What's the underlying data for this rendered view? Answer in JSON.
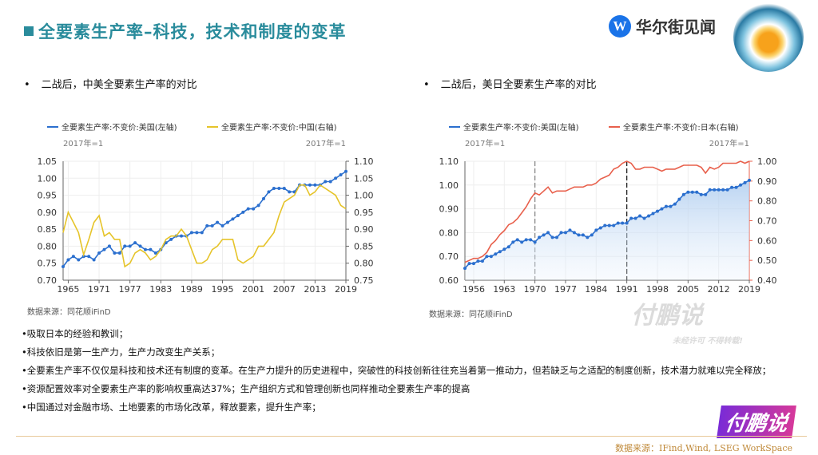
{
  "header": {
    "title": "全要素生产率–科技，技术和制度的变革",
    "brand": "华尔街见闻",
    "brand_logo_letter": "W",
    "brand_color": "#1a73e8",
    "title_color": "#2a8c9c"
  },
  "bullets": [
    "二战后，中美全要素生产率的对比",
    "二战后，美日全要素生产率的对比"
  ],
  "chart_data": [
    {
      "type": "line",
      "legend": [
        "全要素生产率:不变价:美国(左轴)",
        "全要素生产率:不变价:中国(右轴)"
      ],
      "legend_placement": "top",
      "left_unit": "2017年=1",
      "right_unit": "2017年=1",
      "ylim_left": [
        0.7,
        1.05
      ],
      "yticks_left": [
        "0.70",
        "0.75",
        "0.80",
        "0.85",
        "0.90",
        "0.95",
        "1.00",
        "1.05"
      ],
      "ylim_right": [
        0.75,
        1.1
      ],
      "yticks_right": [
        "0.75",
        "0.80",
        "0.85",
        "0.90",
        "0.95",
        "1.00",
        "1.05",
        "1.10"
      ],
      "xlim": [
        1964,
        2019
      ],
      "xticks": [
        "1965",
        "1971",
        "1977",
        "1983",
        "1989",
        "1995",
        "2001",
        "2007",
        "2013",
        "2019"
      ],
      "grid": true,
      "source": "数据来源：同花顺iFinD",
      "series": [
        {
          "name": "全要素生产率:不变价:美国(左轴)",
          "axis": "left",
          "color": "#2b6fce",
          "markers": true,
          "x_start": 1964,
          "values": [
            0.74,
            0.76,
            0.77,
            0.76,
            0.77,
            0.77,
            0.76,
            0.78,
            0.79,
            0.8,
            0.78,
            0.78,
            0.8,
            0.8,
            0.81,
            0.8,
            0.79,
            0.79,
            0.78,
            0.79,
            0.81,
            0.82,
            0.83,
            0.83,
            0.83,
            0.84,
            0.84,
            0.84,
            0.86,
            0.86,
            0.87,
            0.86,
            0.87,
            0.88,
            0.89,
            0.9,
            0.91,
            0.91,
            0.92,
            0.94,
            0.96,
            0.97,
            0.97,
            0.97,
            0.96,
            0.96,
            0.98,
            0.98,
            0.98,
            0.98,
            0.98,
            0.99,
            0.99,
            1.0,
            1.01,
            1.02
          ]
        },
        {
          "name": "全要素生产率:不变价:中国(右轴)",
          "axis": "right",
          "color": "#e6c42a",
          "markers": false,
          "x_start": 1964,
          "values": [
            0.89,
            0.95,
            0.92,
            0.89,
            0.825,
            0.87,
            0.92,
            0.94,
            0.88,
            0.89,
            0.87,
            0.87,
            0.79,
            0.8,
            0.83,
            0.84,
            0.83,
            0.81,
            0.82,
            0.84,
            0.87,
            0.88,
            0.88,
            0.9,
            0.88,
            0.84,
            0.8,
            0.8,
            0.81,
            0.84,
            0.85,
            0.87,
            0.87,
            0.87,
            0.81,
            0.8,
            0.81,
            0.82,
            0.85,
            0.85,
            0.87,
            0.89,
            0.94,
            0.98,
            0.99,
            1.0,
            1.03,
            1.03,
            1.0,
            1.01,
            1.03,
            1.02,
            1.01,
            1.0,
            0.97,
            0.96
          ]
        }
      ]
    },
    {
      "type": "line",
      "legend": [
        "全要素生产率:不变价:美国(左轴)",
        "全要素生产率:不变价:日本(右轴)"
      ],
      "legend_placement": "top",
      "left_unit": "2017年=1",
      "right_unit": "2017年=1",
      "ylim_left": [
        0.6,
        1.1
      ],
      "yticks_left": [
        "0.60",
        "0.70",
        "0.80",
        "0.90",
        "1.00",
        "1.10"
      ],
      "ylim_right": [
        0.4,
        1.0
      ],
      "yticks_right": [
        "0.40",
        "0.50",
        "0.60",
        "0.70",
        "0.80",
        "0.90",
        "1.00"
      ],
      "xlim": [
        1954,
        2019
      ],
      "xticks": [
        "1956",
        "1963",
        "1970",
        "1977",
        "1984",
        "1991",
        "1998",
        "2005",
        "2012",
        "2019"
      ],
      "grid": true,
      "vlines": [
        1970,
        1991
      ],
      "source": "数据来源：同花顺iFinD",
      "series": [
        {
          "name": "全要素生产率:不变价:美国(左轴)",
          "axis": "left",
          "color": "#2b6fce",
          "markers": true,
          "area": true,
          "x_start": 1954,
          "values": [
            0.65,
            0.67,
            0.67,
            0.68,
            0.68,
            0.7,
            0.7,
            0.71,
            0.72,
            0.73,
            0.74,
            0.76,
            0.77,
            0.76,
            0.77,
            0.77,
            0.76,
            0.78,
            0.79,
            0.8,
            0.78,
            0.78,
            0.8,
            0.8,
            0.81,
            0.8,
            0.79,
            0.79,
            0.78,
            0.79,
            0.81,
            0.82,
            0.83,
            0.83,
            0.83,
            0.84,
            0.84,
            0.84,
            0.86,
            0.86,
            0.87,
            0.86,
            0.87,
            0.88,
            0.89,
            0.9,
            0.91,
            0.91,
            0.92,
            0.94,
            0.96,
            0.97,
            0.97,
            0.97,
            0.96,
            0.96,
            0.98,
            0.98,
            0.98,
            0.98,
            0.98,
            0.99,
            0.99,
            1.0,
            1.01,
            1.02
          ]
        },
        {
          "name": "全要素生产率:不变价:日本(右轴)",
          "axis": "right",
          "color": "#e8604c",
          "markers": false,
          "x_start": 1954,
          "values": [
            0.49,
            0.5,
            0.51,
            0.51,
            0.52,
            0.54,
            0.58,
            0.6,
            0.63,
            0.65,
            0.68,
            0.69,
            0.71,
            0.74,
            0.77,
            0.81,
            0.84,
            0.83,
            0.85,
            0.87,
            0.84,
            0.85,
            0.85,
            0.85,
            0.86,
            0.87,
            0.87,
            0.87,
            0.88,
            0.88,
            0.89,
            0.91,
            0.92,
            0.93,
            0.96,
            0.97,
            0.99,
            1.0,
            0.99,
            0.96,
            0.96,
            0.97,
            0.97,
            0.97,
            0.96,
            0.95,
            0.96,
            0.96,
            0.96,
            0.97,
            0.98,
            0.98,
            0.98,
            0.98,
            0.97,
            0.94,
            0.97,
            0.96,
            0.97,
            0.99,
            0.99,
            0.99,
            0.99,
            1.0,
            0.99,
            1.0
          ]
        }
      ]
    }
  ],
  "notes": [
    "•吸取日本的经验和教训；",
    "•科技依旧是第一生产力，生产力改变生产关系；",
    "•全要素生产率不仅仅是科技和技术还有制度的变革。在生产力提升的历史进程中，突破性的科技创新往往充当着第一推动力，但若缺乏与之适配的制度创新，技术潜力就难以完全释放；",
    "•资源配置效率对全要素生产率的影响权重高达37%；生产组织方式和管理创新也同样推动全要素生产率的提高",
    "•中国通过对金融市场、土地要素的市场化改革，释放要素，提升生产率；"
  ],
  "watermark": {
    "text": "付鹏说",
    "sub": "未经许可 不得转载!"
  },
  "footer": "数据来源：IFind,Wind, LSEG WorkSpace"
}
